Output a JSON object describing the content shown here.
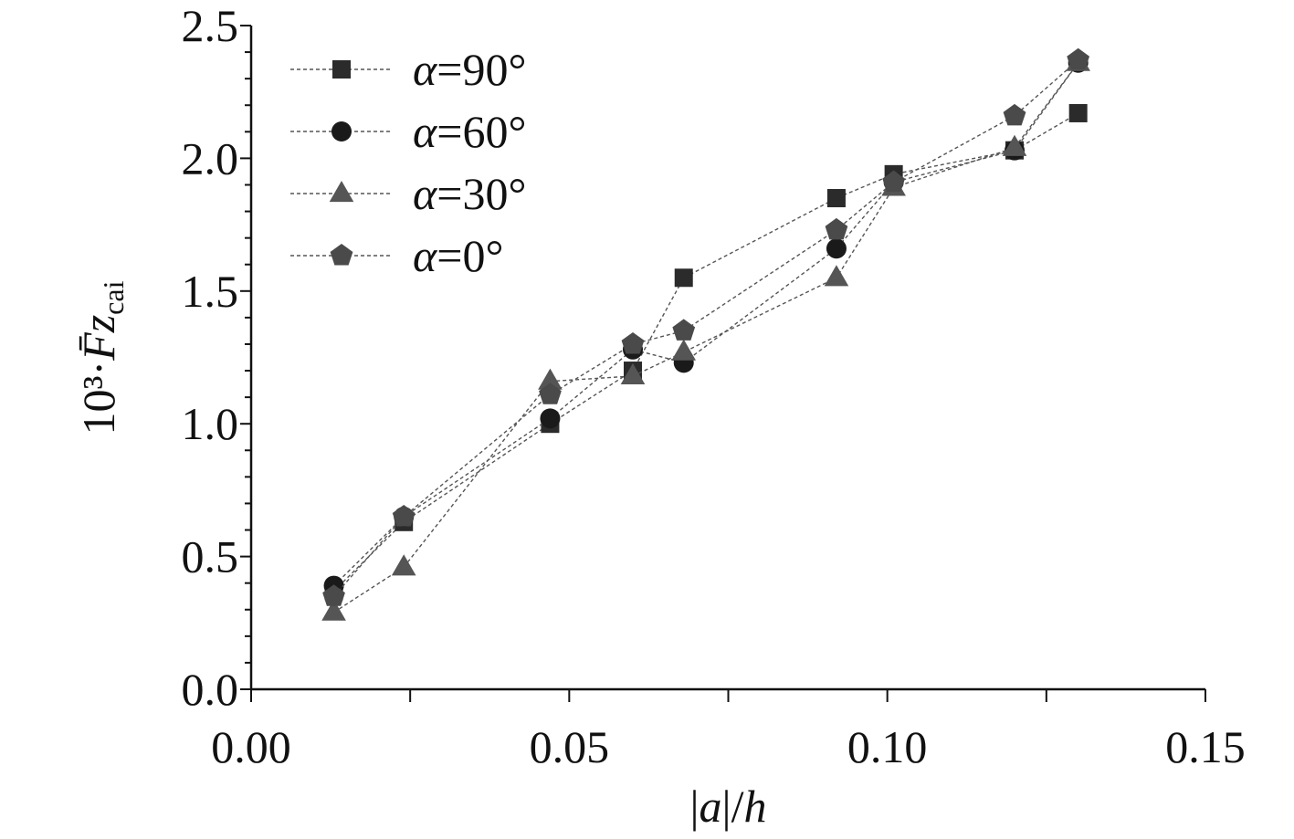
{
  "chart_data": {
    "type": "scatter",
    "xlabel": "|a|/h",
    "ylabel": "10³·F̄z_cai",
    "xlim": [
      0.0,
      0.15
    ],
    "ylim": [
      0.0,
      2.5
    ],
    "xticks": [
      0.0,
      0.05,
      0.1,
      0.15
    ],
    "yticks": [
      0.0,
      0.5,
      1.0,
      1.5,
      2.0,
      2.5
    ],
    "xtick_labels": [
      "0.00",
      "0.05",
      "0.10",
      "0.15"
    ],
    "ytick_labels": [
      "0.0",
      "0.5",
      "1.0",
      "1.5",
      "2.0",
      "2.5"
    ],
    "grid": false,
    "legend_position": "top-left",
    "line_style": "dashed",
    "series": [
      {
        "name": "α=90°",
        "marker": "square",
        "color": "#2b2b2b",
        "x": [
          0.013,
          0.024,
          0.047,
          0.06,
          0.068,
          0.092,
          0.101,
          0.12,
          0.13
        ],
        "y": [
          0.37,
          0.63,
          1.0,
          1.2,
          1.55,
          1.85,
          1.94,
          2.03,
          2.17
        ]
      },
      {
        "name": "α=60°",
        "marker": "circle",
        "color": "#1a1a1a",
        "x": [
          0.013,
          0.024,
          0.047,
          0.06,
          0.068,
          0.092,
          0.101,
          0.12,
          0.13
        ],
        "y": [
          0.39,
          0.65,
          1.02,
          1.28,
          1.23,
          1.66,
          1.91,
          2.03,
          2.36
        ]
      },
      {
        "name": "α=30°",
        "marker": "triangle",
        "color": "#555555",
        "x": [
          0.013,
          0.024,
          0.047,
          0.06,
          0.068,
          0.092,
          0.101,
          0.12,
          0.13
        ],
        "y": [
          0.29,
          0.46,
          1.16,
          1.18,
          1.27,
          1.55,
          1.89,
          2.04,
          2.36
        ]
      },
      {
        "name": "α=0°",
        "marker": "pentagon",
        "color": "#4a4a4a",
        "x": [
          0.013,
          0.024,
          0.047,
          0.06,
          0.068,
          0.092,
          0.101,
          0.12,
          0.13
        ],
        "y": [
          0.35,
          0.65,
          1.11,
          1.3,
          1.35,
          1.73,
          1.91,
          2.16,
          2.37
        ]
      }
    ]
  }
}
